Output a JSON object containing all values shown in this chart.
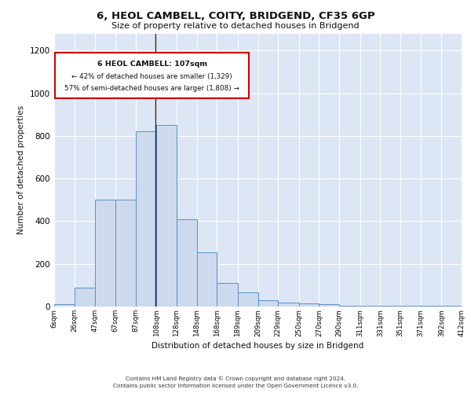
{
  "title": "6, HEOL CAMBELL, COITY, BRIDGEND, CF35 6GP",
  "subtitle": "Size of property relative to detached houses in Bridgend",
  "xlabel": "Distribution of detached houses by size in Bridgend",
  "ylabel": "Number of detached properties",
  "bar_vals_20": [
    10,
    90,
    500,
    500,
    820,
    850,
    410,
    255,
    110,
    65,
    30,
    20,
    15,
    10,
    5,
    5,
    5,
    5,
    5,
    5
  ],
  "bin_edges": [
    6,
    26,
    47,
    67,
    87,
    108,
    128,
    148,
    168,
    189,
    209,
    229,
    250,
    270,
    290,
    311,
    331,
    351,
    371,
    392,
    412
  ],
  "property_size": 107,
  "annotation_text_line1": "6 HEOL CAMBELL: 107sqm",
  "annotation_text_line2": "← 42% of detached houses are smaller (1,329)",
  "annotation_text_line3": "57% of semi-detached houses are larger (1,808) →",
  "bar_facecolor": "#cdd9ed",
  "bar_edgecolor": "#5b8fc9",
  "vline_color": "#222222",
  "bg_color": "#dde6f5",
  "annotation_box_edgecolor": "#cc0000",
  "annotation_box_facecolor": "#ffffff",
  "grid_color": "#ffffff",
  "tick_labels": [
    "6sqm",
    "26sqm",
    "47sqm",
    "67sqm",
    "87sqm",
    "108sqm",
    "128sqm",
    "148sqm",
    "168sqm",
    "189sqm",
    "209sqm",
    "229sqm",
    "250sqm",
    "270sqm",
    "290sqm",
    "311sqm",
    "331sqm",
    "351sqm",
    "371sqm",
    "392sqm",
    "412sqm"
  ],
  "ylim": [
    0,
    1280
  ],
  "yticks": [
    0,
    200,
    400,
    600,
    800,
    1000,
    1200
  ],
  "footer_line1": "Contains HM Land Registry data © Crown copyright and database right 2024.",
  "footer_line2": "Contains public sector information licensed under the Open Government Licence v3.0."
}
